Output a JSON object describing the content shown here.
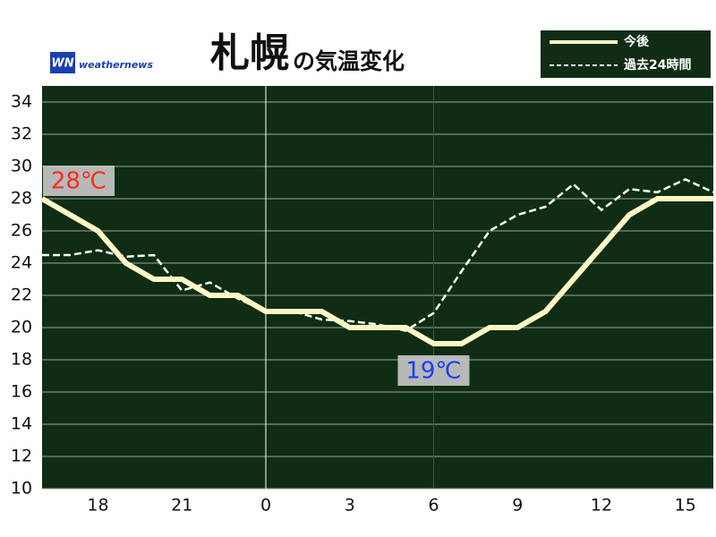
{
  "chart_data": {
    "type": "line",
    "title": "札幌",
    "title_suffix": "の気温変化",
    "logo": {
      "mark": "WN",
      "text": "weathernews"
    },
    "x": [
      16,
      17,
      18,
      19,
      20,
      21,
      22,
      23,
      24,
      25,
      26,
      27,
      28,
      29,
      30,
      31,
      32,
      33,
      34,
      35,
      36,
      37,
      38,
      39,
      40
    ],
    "xlim": [
      16,
      40
    ],
    "xticks": [
      {
        "value": 18,
        "label": "18"
      },
      {
        "value": 21,
        "label": "21"
      },
      {
        "value": 24,
        "label": "0"
      },
      {
        "value": 27,
        "label": "3"
      },
      {
        "value": 30,
        "label": "6"
      },
      {
        "value": 33,
        "label": "9"
      },
      {
        "value": 36,
        "label": "12"
      },
      {
        "value": 39,
        "label": "15"
      }
    ],
    "ylim": [
      10,
      35
    ],
    "yticks": [
      10,
      12,
      14,
      16,
      18,
      20,
      22,
      24,
      26,
      28,
      30,
      32,
      34
    ],
    "grid": true,
    "vlines": [
      {
        "value": 24,
        "color": "#ffffff"
      },
      {
        "value": 30,
        "color": "#2a3cff"
      }
    ],
    "background": "#0f2d14",
    "series": [
      {
        "name": "今後",
        "color": "#fff6c4",
        "dashed": false,
        "values": [
          28,
          27,
          26,
          24,
          23,
          23,
          22,
          22,
          21,
          21,
          21,
          20,
          20,
          20,
          19,
          19,
          20,
          20,
          21,
          23,
          25,
          27,
          28,
          28,
          28
        ]
      },
      {
        "name": "過去24時間",
        "color": "#ffffff",
        "dashed": true,
        "values": [
          24.5,
          24.5,
          24.8,
          24.4,
          24.5,
          22.3,
          22.8,
          21.8,
          21,
          21,
          20.5,
          20.4,
          20.2,
          19.8,
          20.9,
          23.5,
          26,
          27,
          27.5,
          28.9,
          27.3,
          28.6,
          28.4,
          29.2,
          28.4
        ]
      }
    ],
    "annotations": [
      {
        "text": "28℃",
        "x": 16,
        "y": 28,
        "color": "#ff2a1a"
      },
      {
        "text": "19℃",
        "x": 30,
        "y": 19,
        "color": "#1a3cff"
      }
    ]
  }
}
